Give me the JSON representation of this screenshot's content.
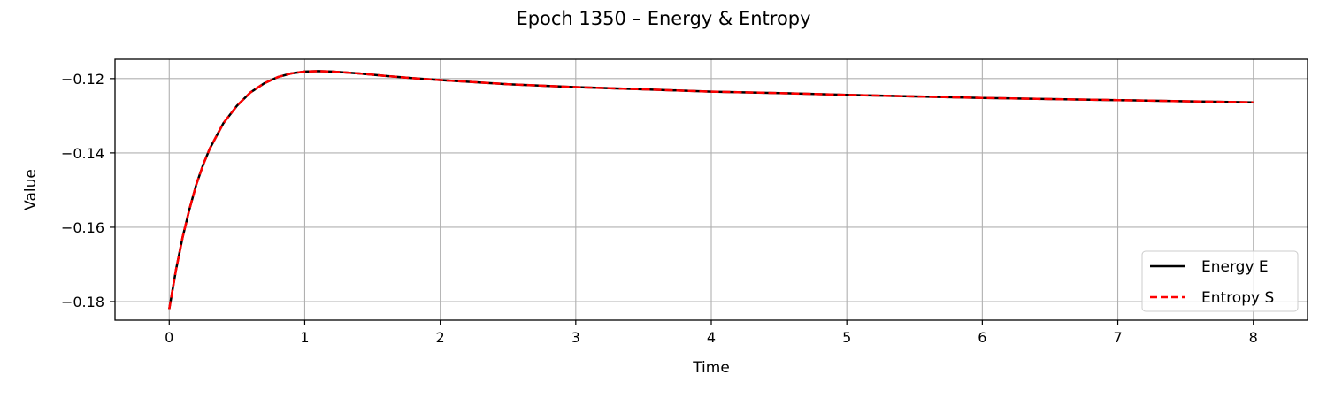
{
  "chart_data": {
    "type": "line",
    "title": "Epoch 1350 – Energy & Entropy",
    "xlabel": "Time",
    "ylabel": "Value",
    "xlim": [
      -0.4,
      8.4
    ],
    "ylim": [
      -0.185,
      -0.1148
    ],
    "xticks": [
      0,
      1,
      2,
      3,
      4,
      5,
      6,
      7,
      8
    ],
    "yticks": [
      -0.18,
      -0.16,
      -0.14,
      -0.12
    ],
    "xtick_labels": [
      "0",
      "1",
      "2",
      "3",
      "4",
      "5",
      "6",
      "7",
      "8"
    ],
    "ytick_labels": [
      "−0.18",
      "−0.16",
      "−0.14",
      "−0.12"
    ],
    "grid": true,
    "legend": "lower right",
    "x": [
      0.0,
      0.05,
      0.1,
      0.15,
      0.2,
      0.25,
      0.3,
      0.4,
      0.5,
      0.6,
      0.7,
      0.8,
      0.9,
      1.0,
      1.1,
      1.2,
      1.4,
      1.6,
      1.8,
      2.0,
      2.5,
      3.0,
      3.5,
      4.0,
      4.5,
      5.0,
      5.5,
      6.0,
      6.5,
      7.0,
      7.5,
      8.0
    ],
    "series": [
      {
        "name": "Energy E",
        "color": "#000000",
        "dash": "solid",
        "values": [
          -0.182,
          -0.1715,
          -0.1625,
          -0.155,
          -0.1485,
          -0.1432,
          -0.1388,
          -0.132,
          -0.1273,
          -0.1237,
          -0.1213,
          -0.1196,
          -0.1186,
          -0.1181,
          -0.118,
          -0.1181,
          -0.1186,
          -0.1193,
          -0.1199,
          -0.1204,
          -0.1215,
          -0.1223,
          -0.1229,
          -0.1235,
          -0.1239,
          -0.1244,
          -0.1248,
          -0.1252,
          -0.1255,
          -0.1258,
          -0.1261,
          -0.1264
        ]
      },
      {
        "name": "Entropy S",
        "color": "#ff0000",
        "dash": "dashed",
        "values": [
          -0.182,
          -0.1715,
          -0.1625,
          -0.155,
          -0.1485,
          -0.1432,
          -0.1388,
          -0.132,
          -0.1273,
          -0.1237,
          -0.1213,
          -0.1196,
          -0.1186,
          -0.1181,
          -0.118,
          -0.1181,
          -0.1186,
          -0.1193,
          -0.1199,
          -0.1204,
          -0.1215,
          -0.1223,
          -0.1229,
          -0.1235,
          -0.1239,
          -0.1244,
          -0.1248,
          -0.1252,
          -0.1255,
          -0.1258,
          -0.1261,
          -0.1264
        ]
      }
    ]
  }
}
